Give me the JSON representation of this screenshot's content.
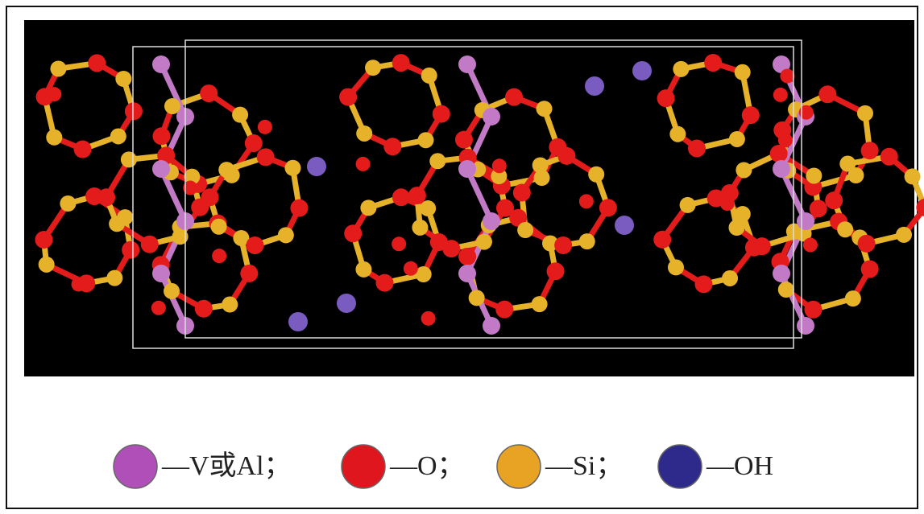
{
  "legend": [
    {
      "label": "—V或Al；",
      "color": "#b04fb8"
    },
    {
      "label": "—O；",
      "color": "#e0161e"
    },
    {
      "label": "—Si；",
      "color": "#e8a325"
    },
    {
      "label": "—OH",
      "color": "#2e2a8c"
    }
  ]
}
